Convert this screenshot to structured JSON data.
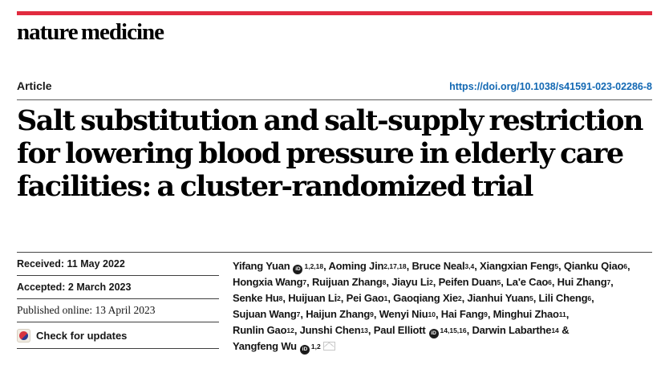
{
  "brand": {
    "logo_text": "nature medicine",
    "accent_red": "#e12b3f"
  },
  "header": {
    "article_label": "Article",
    "doi_link": "https://doi.org/10.1038/s41591-023-02286-8",
    "doi_color": "#1268b3"
  },
  "title_lines": [
    "Salt substitution and salt-supply restriction",
    "for lowering blood pressure in elderly care",
    "facilities: a cluster-randomized trial"
  ],
  "meta": {
    "received": "Received: 11 May 2022",
    "accepted": "Accepted: 2 March 2023",
    "published_online": "Published online: 13 April 2023",
    "check_for_updates": "Check for updates"
  },
  "icons": {
    "orcid_text": "iD"
  },
  "authors": {
    "lines": [
      [
        {
          "t": "Yifang Yuan"
        },
        {
          "icon": "orcid"
        },
        {
          "sup": "1,2,18"
        },
        {
          "t": ", Aoming Jin"
        },
        {
          "sup": "2,17,18"
        },
        {
          "t": ", Bruce Neal"
        },
        {
          "sup": "3,4"
        },
        {
          "t": ", Xiangxian Feng"
        },
        {
          "sup": "5"
        },
        {
          "t": ", Qianku Qiao"
        },
        {
          "sup": "6"
        },
        {
          "t": ","
        }
      ],
      [
        {
          "t": "Hongxia Wang"
        },
        {
          "sup": "7"
        },
        {
          "t": ", Ruijuan Zhang"
        },
        {
          "sup": "8"
        },
        {
          "t": ", Jiayu Li"
        },
        {
          "sup": "2"
        },
        {
          "t": ", Peifen Duan"
        },
        {
          "sup": "5"
        },
        {
          "t": ", La'e Cao"
        },
        {
          "sup": "6"
        },
        {
          "t": ", Hui Zhang"
        },
        {
          "sup": "7"
        },
        {
          "t": ","
        }
      ],
      [
        {
          "t": "Senke Hu"
        },
        {
          "sup": "8"
        },
        {
          "t": ", Huijuan Li"
        },
        {
          "sup": "2"
        },
        {
          "t": ", Pei Gao"
        },
        {
          "sup": "1"
        },
        {
          "t": ", Gaoqiang Xie"
        },
        {
          "sup": "2"
        },
        {
          "t": ", Jianhui Yuan"
        },
        {
          "sup": "5"
        },
        {
          "t": ", Lili Cheng"
        },
        {
          "sup": "6"
        },
        {
          "t": ","
        }
      ],
      [
        {
          "t": "Sujuan Wang"
        },
        {
          "sup": "7"
        },
        {
          "t": ", Haijun Zhang"
        },
        {
          "sup": "9"
        },
        {
          "t": ", Wenyi Niu"
        },
        {
          "sup": "10"
        },
        {
          "t": ", Hai Fang"
        },
        {
          "sup": "9"
        },
        {
          "t": ", Minghui Zhao"
        },
        {
          "sup": "11"
        },
        {
          "t": ","
        }
      ],
      [
        {
          "t": "Runlin Gao"
        },
        {
          "sup": "12"
        },
        {
          "t": ", Junshi Chen"
        },
        {
          "sup": "13"
        },
        {
          "t": ", Paul Elliott"
        },
        {
          "icon": "orcid"
        },
        {
          "sup": "14,15,16"
        },
        {
          "t": ", Darwin Labarthe"
        },
        {
          "sup": "14"
        },
        {
          "t": " &"
        }
      ],
      [
        {
          "t": "Yangfeng Wu"
        },
        {
          "icon": "orcid"
        },
        {
          "sup": "1,2"
        },
        {
          "icon": "envelope"
        }
      ]
    ]
  }
}
